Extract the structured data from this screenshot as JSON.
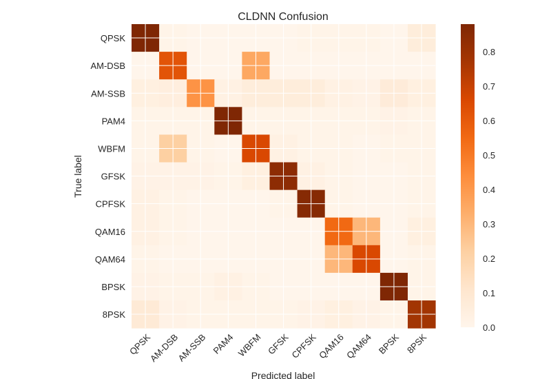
{
  "chart_data": {
    "type": "heatmap",
    "title": "CLDNN Confusion",
    "xlabel": "Predicted label",
    "ylabel": "True label",
    "colormap": "Oranges",
    "grid": true,
    "colorbar_range": [
      0,
      0.88
    ],
    "colorbar_ticks": [
      "0.0",
      "0.1",
      "0.2",
      "0.3",
      "0.4",
      "0.5",
      "0.6",
      "0.7",
      "0.8"
    ],
    "x_categories": [
      "QPSK",
      "AM-DSB",
      "AM-SSB",
      "PAM4",
      "WBFM",
      "GFSK",
      "CPFSK",
      "QAM16",
      "QAM64",
      "BPSK",
      "8PSK"
    ],
    "y_categories": [
      "QPSK",
      "AM-DSB",
      "AM-SSB",
      "PAM4",
      "WBFM",
      "GFSK",
      "CPFSK",
      "QAM16",
      "QAM64",
      "BPSK",
      "8PSK"
    ],
    "values": [
      [
        0.88,
        0.01,
        0.0,
        0.0,
        0.0,
        0.0,
        0.01,
        0.01,
        0.01,
        0.0,
        0.06
      ],
      [
        0.0,
        0.62,
        0.0,
        0.0,
        0.35,
        0.0,
        0.0,
        0.0,
        0.0,
        0.0,
        0.0
      ],
      [
        0.04,
        0.05,
        0.42,
        0.03,
        0.06,
        0.06,
        0.06,
        0.03,
        0.02,
        0.07,
        0.04
      ],
      [
        0.01,
        0.01,
        0.01,
        0.88,
        0.01,
        0.01,
        0.01,
        0.01,
        0.01,
        0.02,
        0.01
      ],
      [
        0.01,
        0.22,
        0.01,
        0.0,
        0.66,
        0.03,
        0.01,
        0.01,
        0.0,
        0.01,
        0.01
      ],
      [
        0.02,
        0.02,
        0.02,
        0.01,
        0.04,
        0.84,
        0.03,
        0.01,
        0.0,
        0.0,
        0.01
      ],
      [
        0.03,
        0.01,
        0.0,
        0.0,
        0.0,
        0.01,
        0.86,
        0.01,
        0.0,
        0.0,
        0.01
      ],
      [
        0.03,
        0.01,
        0.0,
        0.0,
        0.0,
        0.0,
        0.0,
        0.55,
        0.3,
        0.0,
        0.04
      ],
      [
        0.01,
        0.0,
        0.0,
        0.0,
        0.0,
        0.0,
        0.0,
        0.3,
        0.66,
        0.0,
        0.01
      ],
      [
        0.02,
        0.01,
        0.01,
        0.03,
        0.01,
        0.0,
        0.0,
        0.0,
        0.0,
        0.88,
        0.01
      ],
      [
        0.08,
        0.02,
        0.01,
        0.01,
        0.01,
        0.01,
        0.02,
        0.04,
        0.02,
        0.01,
        0.78
      ]
    ]
  },
  "colors": {
    "colormap_stops": [
      "#fff5eb",
      "#fee6ce",
      "#fdd0a2",
      "#fdae6b",
      "#fd8d3c",
      "#f16913",
      "#d94801",
      "#a63603",
      "#7f2704"
    ],
    "grid_line": "#ffffff",
    "text": "#262626"
  }
}
